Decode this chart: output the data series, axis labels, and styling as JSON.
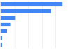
{
  "values": [
    13500,
    11000,
    3200,
    2200,
    1400,
    350,
    250
  ],
  "bar_color": "#4285f4",
  "background_color": "#ffffff",
  "xlim": [
    0,
    15000
  ],
  "bar_height": 0.6,
  "figsize": [
    1.0,
    0.71
  ],
  "dpi": 100,
  "grid_color": "#dddddd",
  "spine_color": "#cccccc"
}
